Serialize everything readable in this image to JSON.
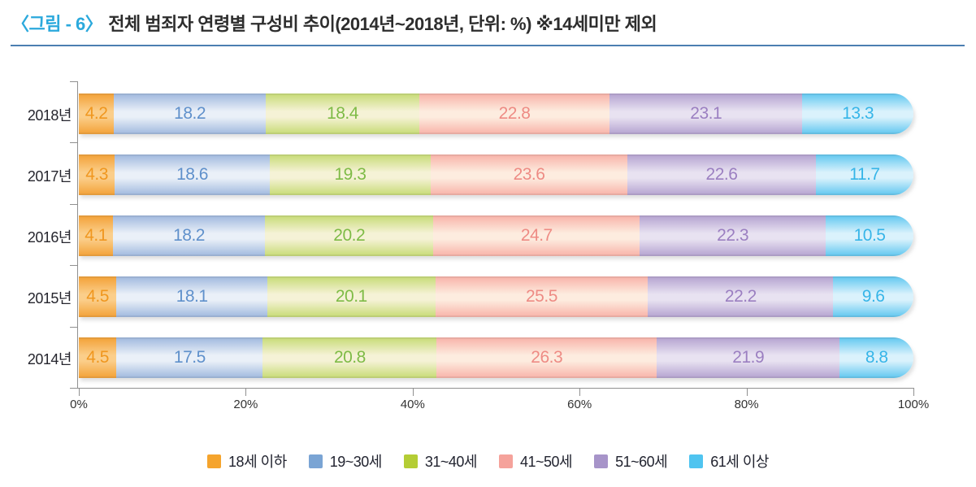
{
  "title": {
    "prefix": "〈그림 - 6〉",
    "text": "전체 범죄자 연령별 구성비 추이(2014년~2018년, 단위: %) ※14세미만 제외"
  },
  "colors": {
    "title_prefix": "#2BA9DC",
    "divider": "#4b7fb1",
    "axis": "#909090"
  },
  "chart_data": {
    "type": "bar",
    "subtype": "horizontal-stacked-100pct",
    "title": "전체 범죄자 연령별 구성비 추이(2014년~2018년, 단위: %) ※14세미만 제외",
    "categories": [
      "2018년",
      "2017년",
      "2016년",
      "2015년",
      "2014년"
    ],
    "series": [
      {
        "name": "18세 이하",
        "swatch": "#F5A42D",
        "edge": "#F3A136",
        "light": "#FBCE8A",
        "label_color": "#F0971F",
        "values": [
          4.2,
          4.3,
          4.1,
          4.5,
          4.5
        ]
      },
      {
        "name": "19~30세",
        "swatch": "#7AA4D4",
        "edge": "#9FB8DE",
        "light": "#EAF0F8",
        "label_color": "#5F90CB",
        "values": [
          18.2,
          18.6,
          18.2,
          18.1,
          17.5
        ]
      },
      {
        "name": "31~40세",
        "swatch": "#B4CD35",
        "edge": "#C7DB75",
        "light": "#F5F2D6",
        "label_color": "#7EBB46",
        "values": [
          18.4,
          19.3,
          20.2,
          20.1,
          20.8
        ]
      },
      {
        "name": "41~50세",
        "swatch": "#F5A29B",
        "edge": "#F8B2A8",
        "light": "#FDECDF",
        "label_color": "#EE8B84",
        "values": [
          22.8,
          23.6,
          24.7,
          25.5,
          26.3
        ]
      },
      {
        "name": "51~60세",
        "swatch": "#A794C9",
        "edge": "#B4A2D0",
        "light": "#E8E2F1",
        "label_color": "#9B7FC1",
        "values": [
          23.1,
          22.6,
          22.3,
          22.2,
          21.9
        ]
      },
      {
        "name": "61세 이상",
        "swatch": "#4FC4F0",
        "edge": "#60C7F0",
        "light": "#DAF2FC",
        "label_color": "#36B5E8",
        "values": [
          13.3,
          11.7,
          10.5,
          9.6,
          8.8
        ]
      }
    ],
    "x_ticks": [
      "0%",
      "20%",
      "40%",
      "60%",
      "80%",
      "100%"
    ],
    "xlim": [
      0,
      100
    ],
    "grid": false,
    "legend_position": "bottom"
  }
}
